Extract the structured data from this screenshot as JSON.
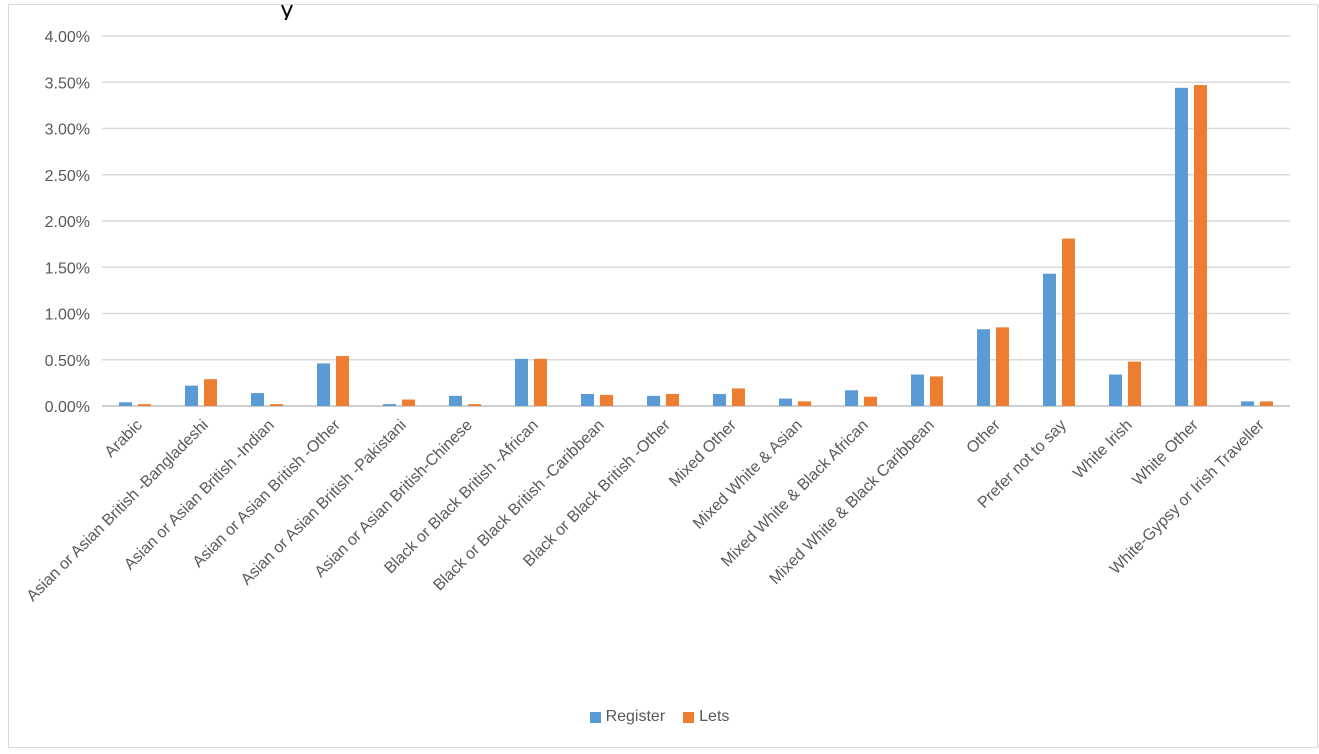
{
  "chart_data": {
    "type": "bar",
    "title": "",
    "xlabel": "",
    "ylabel": "",
    "ylim": [
      0,
      4
    ],
    "y_ticks": [
      "0.00%",
      "0.50%",
      "1.00%",
      "1.50%",
      "2.00%",
      "2.50%",
      "3.00%",
      "3.50%",
      "4.00%"
    ],
    "grid": true,
    "legend_position": "bottom",
    "categories": [
      "Arabic",
      "Asian or Asian British -Bangladeshi",
      "Asian or Asian British -Indian",
      "Asian or Asian British -Other",
      "Asian or Asian British -Pakistani",
      "Asian or Asian British-Chinese",
      "Black or Black British -African",
      "Black or Black British -Caribbean",
      "Black or Black British -Other",
      "Mixed Other",
      "Mixed White & Asian",
      "Mixed White & Black African",
      "Mixed White & Black Caribbean",
      "Other",
      "Prefer not to say",
      "White Irish",
      "White Other",
      "White-Gypsy or Irish Traveller"
    ],
    "series": [
      {
        "name": "Register",
        "color": "#5b9bd5",
        "values": [
          0.04,
          0.22,
          0.14,
          0.46,
          0.02,
          0.11,
          0.51,
          0.13,
          0.11,
          0.13,
          0.08,
          0.17,
          0.34,
          0.83,
          1.43,
          0.34,
          3.44,
          0.05
        ]
      },
      {
        "name": "Lets",
        "color": "#ed7d31",
        "values": [
          0.02,
          0.29,
          0.02,
          0.54,
          0.07,
          0.02,
          0.51,
          0.12,
          0.13,
          0.19,
          0.05,
          0.1,
          0.32,
          0.85,
          1.81,
          0.48,
          3.47,
          0.05
        ]
      }
    ]
  }
}
